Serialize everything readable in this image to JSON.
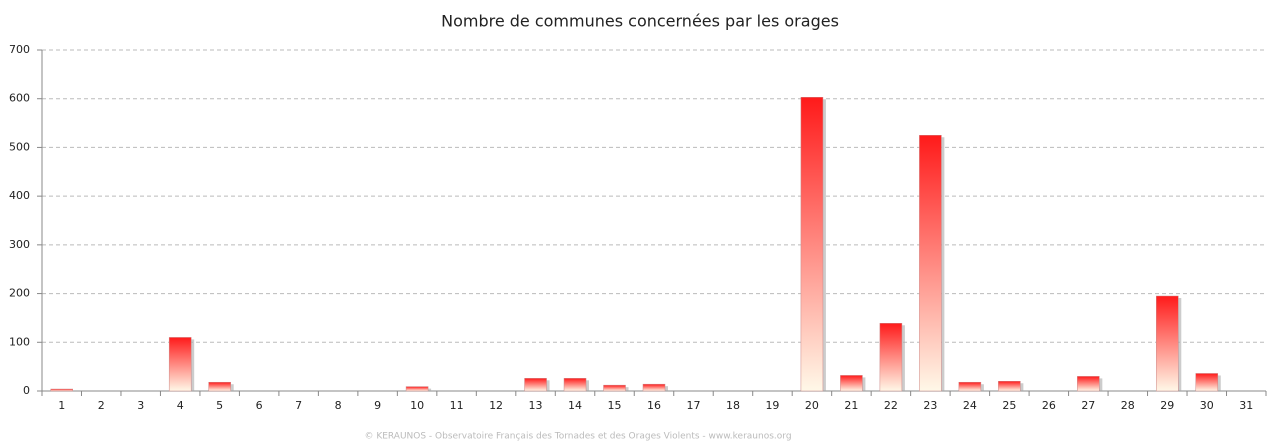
{
  "chart_data": {
    "type": "bar",
    "title": "Nombre de communes concernées par les orages",
    "footer": "© KERAUNOS - Observatoire Français des Tornades et des Orages Violents - www.keraunos.org",
    "categories": [
      "1",
      "2",
      "3",
      "4",
      "5",
      "6",
      "7",
      "8",
      "9",
      "10",
      "11",
      "12",
      "13",
      "14",
      "15",
      "16",
      "17",
      "18",
      "19",
      "20",
      "21",
      "22",
      "23",
      "24",
      "25",
      "26",
      "27",
      "28",
      "29",
      "30",
      "31"
    ],
    "values": [
      4,
      0,
      0,
      110,
      18,
      0,
      0,
      0,
      0,
      9,
      0,
      0,
      26,
      26,
      12,
      14,
      0,
      0,
      0,
      603,
      32,
      139,
      525,
      18,
      20,
      0,
      30,
      0,
      195,
      36,
      0
    ],
    "color": "#ff1a1a",
    "ylim": [
      0,
      700
    ],
    "yticks": [
      0,
      100,
      200,
      300,
      400,
      500,
      600,
      700
    ],
    "grid": true
  }
}
